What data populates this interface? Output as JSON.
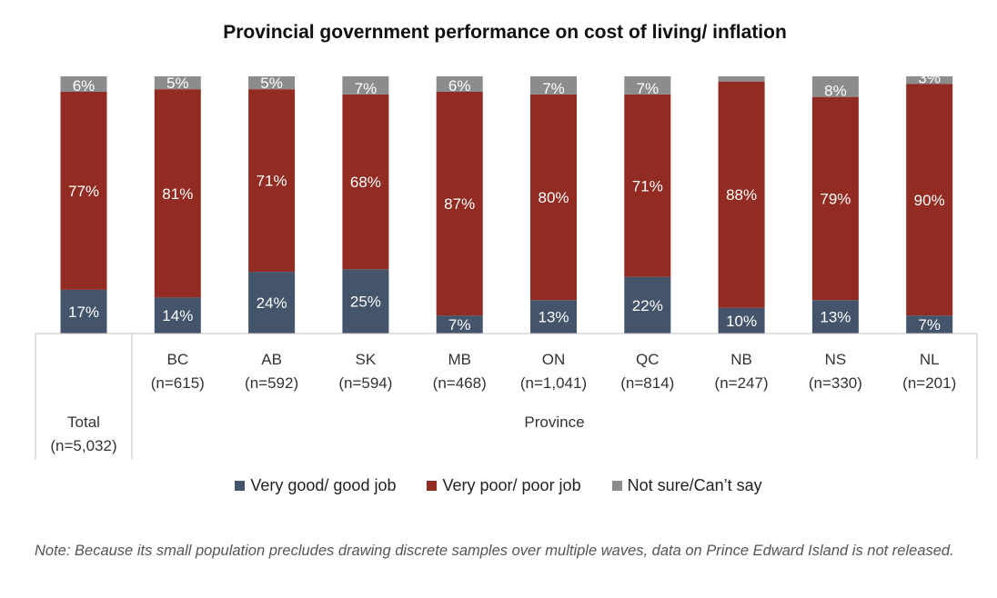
{
  "chart_data": {
    "type": "bar",
    "stacked": true,
    "percent": true,
    "title": "Provincial government performance on cost of living/ inflation",
    "categories": [
      "Total (n=5,032)",
      "BC (n=615)",
      "AB (n=592)",
      "SK (n=594)",
      "MB (n=468)",
      "ON (n=1,041)",
      "QC (n=814)",
      "NB (n=247)",
      "NS (n=330)",
      "NL (n=201)"
    ],
    "category_labels": [
      [
        "Total",
        "(n=5,032)"
      ],
      [
        "BC",
        "(n=615)"
      ],
      [
        "AB",
        "(n=592)"
      ],
      [
        "SK",
        "(n=594)"
      ],
      [
        "MB",
        "(n=468)"
      ],
      [
        "ON",
        "(n=1,041)"
      ],
      [
        "QC",
        "(n=814)"
      ],
      [
        "NB",
        "(n=247)"
      ],
      [
        "NS",
        "(n=330)"
      ],
      [
        "NL",
        "(n=201)"
      ]
    ],
    "group_label": "Province",
    "series": [
      {
        "name": "Very good/ good job",
        "color": "#44546a",
        "values": [
          17,
          14,
          24,
          25,
          7,
          13,
          22,
          10,
          13,
          7
        ],
        "labels": [
          "17%",
          "14%",
          "24%",
          "25%",
          "7%",
          "13%",
          "22%",
          "10%",
          "13%",
          "7%"
        ]
      },
      {
        "name": "Very poor/ poor job",
        "color": "#922b21",
        "values": [
          77,
          81,
          71,
          68,
          87,
          80,
          71,
          88,
          79,
          90
        ],
        "labels": [
          "77%",
          "81%",
          "71%",
          "68%",
          "87%",
          "80%",
          "71%",
          "88%",
          "79%",
          "90%"
        ]
      },
      {
        "name": "Not sure/Can’t say",
        "color": "#8c8c8c",
        "values": [
          6,
          5,
          5,
          7,
          6,
          7,
          7,
          2,
          8,
          3
        ],
        "labels": [
          "6%",
          "5%",
          "5%",
          "7%",
          "6%",
          "7%",
          "7%",
          "",
          "8%",
          "3%"
        ]
      }
    ],
    "ylim": [
      0,
      100
    ],
    "legend_position": "bottom"
  },
  "note": "Note: Because its small population precludes drawing discrete samples over multiple waves, data on Prince Edward Island is not released."
}
